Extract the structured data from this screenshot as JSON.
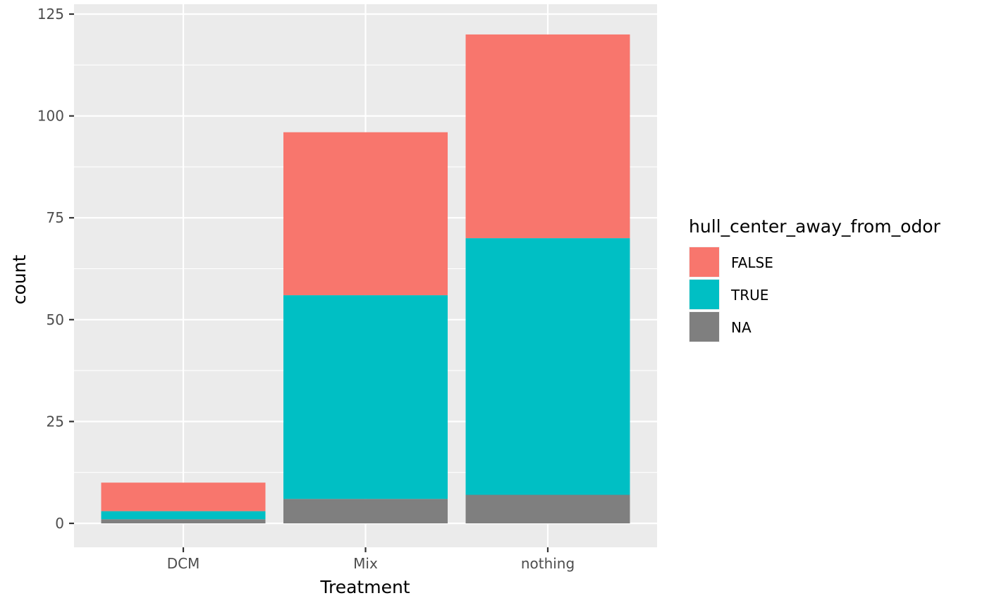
{
  "chart_data": {
    "type": "bar",
    "stacked": true,
    "categories": [
      "DCM",
      "Mix",
      "nothing"
    ],
    "series": [
      {
        "name": "NA",
        "color": "#7f7f7f",
        "values": [
          1,
          6,
          7
        ]
      },
      {
        "name": "TRUE",
        "color": "#00bfc4",
        "values": [
          2,
          50,
          63
        ]
      },
      {
        "name": "FALSE",
        "color": "#f8766d",
        "values": [
          7,
          40,
          50
        ]
      }
    ],
    "xlabel": "Treatment",
    "ylabel": "count",
    "ylim": [
      0,
      125
    ],
    "yticks": [
      0,
      25,
      50,
      75,
      100,
      125
    ],
    "grid": true,
    "legend": {
      "title": "hull_center_away_from_odor",
      "placement": "right",
      "entries": [
        {
          "label": "FALSE",
          "color": "#f8766d"
        },
        {
          "label": "TRUE",
          "color": "#00bfc4"
        },
        {
          "label": "NA",
          "color": "#7f7f7f"
        }
      ]
    }
  }
}
